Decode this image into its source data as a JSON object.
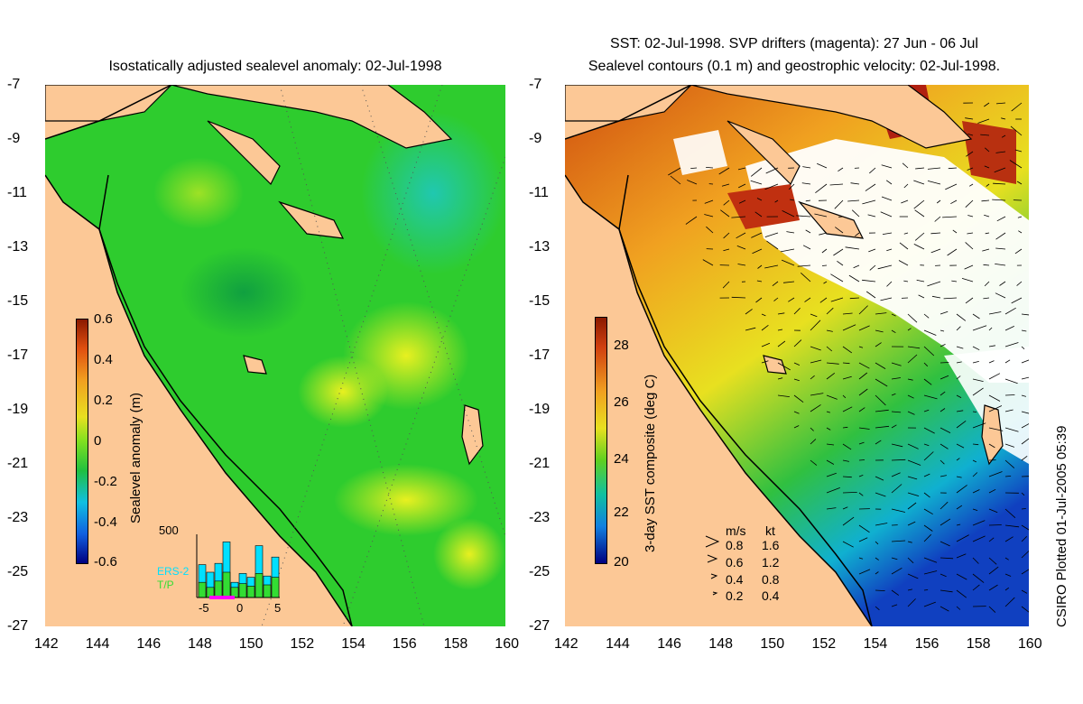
{
  "left_panel": {
    "title": "Isostatically adjusted sealevel anomaly: 02-Jul-1998",
    "colorbar_label": "Sealevel anomaly (m)",
    "colorbar_ticks": [
      "0.6",
      "0.4",
      "0.2",
      "0",
      "-0.2",
      "-0.4",
      "-0.6"
    ],
    "inset": {
      "ymax_label": "500",
      "series": [
        "ERS-2",
        "T/P"
      ],
      "series_colors": [
        "#00e0ff",
        "#33dd33"
      ],
      "x_ticks": [
        "-5",
        "0",
        "5"
      ],
      "ers2_values": [
        260,
        200,
        270,
        440,
        120,
        190,
        160,
        410,
        170,
        320
      ],
      "tp_values": [
        120,
        80,
        130,
        200,
        80,
        110,
        90,
        190,
        100,
        160
      ]
    }
  },
  "right_panel": {
    "title_line1": "SST: 02-Jul-1998. SVP drifters (magenta): 27 Jun - 06 Jul",
    "title_line2": "Sealevel contours (0.1 m) and geostrophic velocity: 02-Jul-1998.",
    "colorbar_label": "3-day SST composite (deg C)",
    "colorbar_ticks": [
      "28",
      "26",
      "24",
      "22",
      "20"
    ],
    "velocity_legend": {
      "header_ms": "m/s",
      "header_kt": "kt",
      "rows": [
        {
          "ms": "0.8",
          "kt": "1.6"
        },
        {
          "ms": "0.6",
          "kt": "1.2"
        },
        {
          "ms": "0.4",
          "kt": "0.8"
        },
        {
          "ms": "0.2",
          "kt": "0.4"
        }
      ]
    }
  },
  "y_ticks": [
    "-7",
    "-9",
    "-11",
    "-13",
    "-15",
    "-17",
    "-19",
    "-21",
    "-23",
    "-25",
    "-27"
  ],
  "x_ticks": [
    "142",
    "144",
    "146",
    "148",
    "150",
    "152",
    "154",
    "156",
    "158",
    "160"
  ],
  "credit": "CSIRO Plotted 01-Jul-2005 05:39",
  "colors": {
    "land": "#fcc896",
    "sea_green": "#2ecc2e",
    "sst_warm": "#e06010",
    "sst_cold": "#1050c0"
  }
}
